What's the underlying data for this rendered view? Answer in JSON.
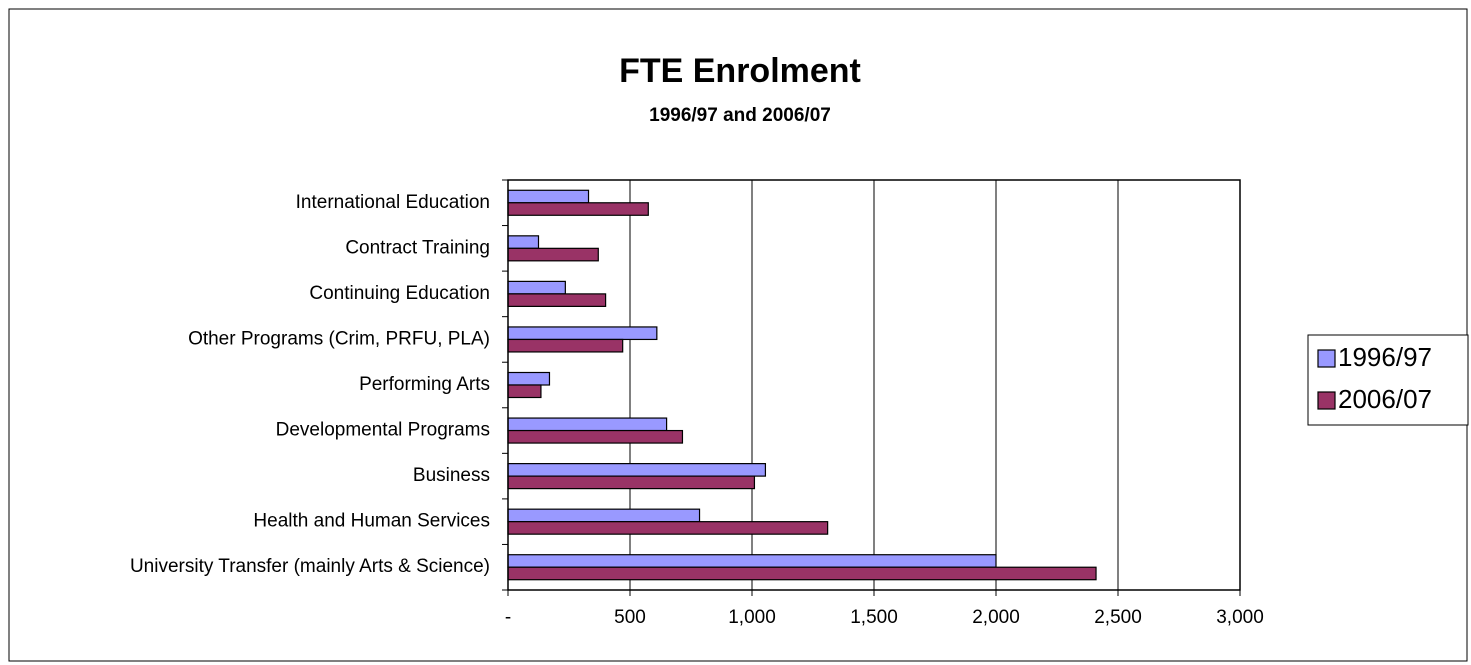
{
  "chart_data": {
    "type": "bar",
    "orientation": "horizontal",
    "title": "FTE Enrolment",
    "subtitle": "1996/97 and 2006/07",
    "categories": [
      "International Education",
      "Contract Training",
      "Continuing Education",
      "Other Programs (Crim, PRFU, PLA)",
      "Performing Arts",
      "Developmental Programs",
      "Business",
      "Health and Human Services",
      "University Transfer (mainly Arts & Science)"
    ],
    "series": [
      {
        "name": "1996/97",
        "color": "#9999ff",
        "values": [
          330,
          125,
          235,
          610,
          170,
          650,
          1055,
          785,
          2000
        ]
      },
      {
        "name": "2006/07",
        "color": "#993366",
        "values": [
          575,
          370,
          400,
          470,
          135,
          715,
          1010,
          1310,
          2410
        ]
      }
    ],
    "xlim": [
      0,
      3000
    ],
    "xticks": [
      {
        "value": 0,
        "label": "-"
      },
      500,
      {
        "value": 1000,
        "label": "1,000"
      },
      {
        "value": 1500,
        "label": "1,500"
      },
      {
        "value": 2000,
        "label": "2,000"
      },
      {
        "value": 2500,
        "label": "2,500"
      },
      {
        "value": 3000,
        "label": "3,000"
      }
    ],
    "grid": true,
    "legend": "right"
  }
}
